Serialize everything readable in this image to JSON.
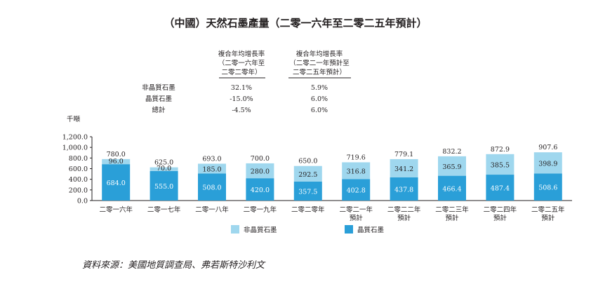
{
  "title": "（中國）天然石墨產量（二零一六年至二零二五年預計）",
  "cagr_table": {
    "headers": [
      [
        "複合年均增長率",
        "（二零一六年至",
        "二零二零年）"
      ],
      [
        "複合年均增長率",
        "（二零二一年預計至",
        "二零二五年預計）"
      ]
    ],
    "rows": [
      {
        "label": "非晶質石墨",
        "v1": "32.1%",
        "v2": "5.9%"
      },
      {
        "label": "晶質石墨",
        "v1": "-15.0%",
        "v2": "6.0%"
      },
      {
        "label": "總計",
        "v1": "-4.5%",
        "v2": "6.0%"
      }
    ]
  },
  "chart_data": {
    "type": "bar",
    "stacked": true,
    "unit": "千噸",
    "ylim": [
      0,
      1200
    ],
    "yticks": [
      "0.0",
      "200.0",
      "400.0",
      "600.0",
      "800.0",
      "1,000.0",
      "1,200.0"
    ],
    "categories": [
      [
        "二零一六年"
      ],
      [
        "二零一七年"
      ],
      [
        "二零一八年"
      ],
      [
        "二零一九年"
      ],
      [
        "二零二零年"
      ],
      [
        "二零二一年",
        "預計"
      ],
      [
        "二零二二年",
        "預計"
      ],
      [
        "二零二三年",
        "預計"
      ],
      [
        "二零二四年",
        "預計"
      ],
      [
        "二零二五年",
        "預計"
      ]
    ],
    "series": [
      {
        "name": "晶質石墨",
        "color": "#2a9fd8",
        "values": [
          684.0,
          555.0,
          508.0,
          420.0,
          357.5,
          402.8,
          437.8,
          466.4,
          487.4,
          508.6
        ],
        "labels": [
          "684.0",
          "555.0",
          "508.0",
          "420.0",
          "357.5",
          "402.8",
          "437.8",
          "466.4",
          "487.4",
          "508.6"
        ]
      },
      {
        "name": "非晶質石墨",
        "color": "#9fd7ee",
        "values": [
          96.0,
          70.0,
          185.0,
          280.0,
          292.5,
          316.8,
          341.2,
          365.9,
          385.5,
          398.9
        ],
        "labels": [
          "96.0",
          "70.0",
          "185.0",
          "280.0",
          "292.5",
          "316.8",
          "341.2",
          "365.9",
          "385.5",
          "398.9"
        ]
      }
    ],
    "totals": [
      "780.0",
      "625.0",
      "693.0",
      "700.0",
      "650.0",
      "719.6",
      "779.1",
      "832.2",
      "872.9",
      "907.6"
    ],
    "legend": [
      {
        "name": "非晶質石墨",
        "color": "#9fd7ee"
      },
      {
        "name": "晶質石墨",
        "color": "#2a9fd8"
      }
    ]
  },
  "source": "資料來源：美國地質調查局、弗若斯特沙利文"
}
